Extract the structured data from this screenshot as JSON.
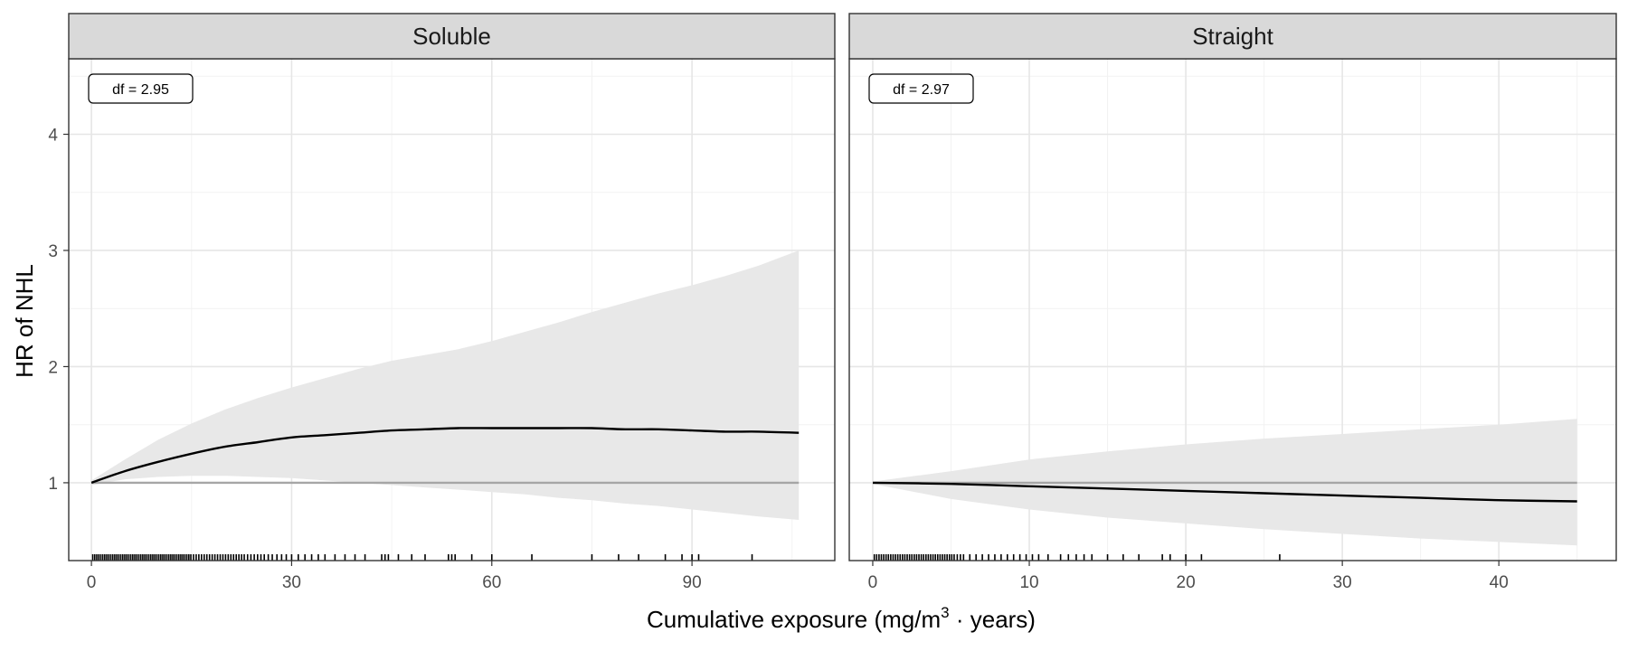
{
  "chart_data": {
    "type": "line",
    "ylabel": "HR of NHL",
    "xlabel_parts": {
      "before": "Cumulative exposure (mg/m",
      "sup": "3",
      "after": " · years)"
    },
    "ylim": [
      0.33,
      4.65
    ],
    "yticks": [
      1,
      2,
      3,
      4
    ],
    "y_minor": [
      1.5,
      2.5,
      3.5,
      4.5
    ],
    "grid": true,
    "reference_line": 1,
    "panels": [
      {
        "strip": "Soluble",
        "annotation": "df = 2.95",
        "xlim": [
          -3.4,
          111.4
        ],
        "xticks": [
          0,
          30,
          60,
          90
        ],
        "x_minor": [
          15,
          45,
          75,
          105
        ],
        "series": {
          "x": [
            0,
            5,
            10,
            15,
            20,
            25,
            30,
            35,
            40,
            45,
            50,
            55,
            60,
            65,
            70,
            75,
            80,
            85,
            90,
            95,
            100,
            106
          ],
          "fit": [
            1.0,
            1.1,
            1.18,
            1.25,
            1.31,
            1.35,
            1.39,
            1.41,
            1.43,
            1.45,
            1.46,
            1.47,
            1.47,
            1.47,
            1.47,
            1.47,
            1.46,
            1.46,
            1.45,
            1.44,
            1.44,
            1.43
          ],
          "lower": [
            0.98,
            1.03,
            1.05,
            1.06,
            1.06,
            1.05,
            1.04,
            1.02,
            1.0,
            0.98,
            0.96,
            0.94,
            0.92,
            0.9,
            0.87,
            0.85,
            0.82,
            0.8,
            0.77,
            0.74,
            0.71,
            0.68
          ],
          "upper": [
            1.02,
            1.2,
            1.37,
            1.51,
            1.63,
            1.73,
            1.82,
            1.9,
            1.98,
            2.05,
            2.1,
            2.15,
            2.22,
            2.3,
            2.38,
            2.47,
            2.55,
            2.63,
            2.7,
            2.78,
            2.87,
            3.0
          ]
        },
        "rug": [
          0.2,
          0.5,
          0.8,
          1.1,
          1.4,
          1.7,
          2.0,
          2.3,
          2.6,
          2.9,
          3.2,
          3.5,
          3.8,
          4.1,
          4.4,
          4.7,
          5.0,
          5.3,
          5.6,
          5.9,
          6.2,
          6.5,
          6.8,
          7.1,
          7.4,
          7.7,
          8.0,
          8.3,
          8.6,
          8.9,
          9.2,
          9.5,
          9.8,
          10.1,
          10.4,
          10.7,
          11.0,
          11.3,
          11.6,
          11.9,
          12.2,
          12.5,
          12.8,
          13.1,
          13.4,
          13.7,
          14.0,
          14.3,
          14.6,
          14.9,
          15.3,
          15.7,
          16.1,
          16.5,
          16.9,
          17.3,
          17.7,
          18.1,
          18.5,
          18.9,
          19.3,
          19.7,
          20.1,
          20.5,
          20.9,
          21.3,
          21.7,
          22.1,
          22.5,
          22.9,
          23.4,
          23.9,
          24.4,
          24.9,
          25.4,
          25.9,
          26.5,
          27.1,
          27.8,
          28.5,
          29.2,
          30.0,
          31.0,
          32.0,
          33.0,
          34.0,
          35.0,
          36.5,
          38.0,
          39.5,
          41.0,
          43.5,
          44.0,
          44.5,
          46.0,
          48.0,
          50.0,
          53.5,
          54.0,
          54.5,
          57.0,
          60.0,
          66.0,
          75.0,
          79.0,
          82.0,
          86.0,
          88.5,
          90.0,
          91.0,
          99.0
        ]
      },
      {
        "strip": "Straight",
        "annotation": "df = 2.97",
        "xlim": [
          -1.5,
          47.5
        ],
        "xticks": [
          0,
          10,
          20,
          30,
          40
        ],
        "x_minor": [
          5,
          15,
          25,
          35,
          45
        ],
        "series": {
          "x": [
            0,
            5,
            10,
            15,
            20,
            25,
            30,
            35,
            40,
            45
          ],
          "fit": [
            1.0,
            0.99,
            0.97,
            0.95,
            0.93,
            0.91,
            0.89,
            0.87,
            0.85,
            0.84
          ],
          "lower": [
            0.99,
            0.86,
            0.77,
            0.7,
            0.65,
            0.6,
            0.56,
            0.52,
            0.49,
            0.46
          ],
          "upper": [
            1.01,
            1.1,
            1.2,
            1.27,
            1.33,
            1.38,
            1.42,
            1.46,
            1.5,
            1.55
          ]
        },
        "rug": [
          0.1,
          0.25,
          0.4,
          0.55,
          0.7,
          0.85,
          1.0,
          1.15,
          1.3,
          1.45,
          1.6,
          1.75,
          1.9,
          2.05,
          2.2,
          2.35,
          2.5,
          2.65,
          2.8,
          2.95,
          3.1,
          3.25,
          3.4,
          3.55,
          3.7,
          3.85,
          4.0,
          4.15,
          4.3,
          4.45,
          4.6,
          4.75,
          4.9,
          5.05,
          5.2,
          5.4,
          5.6,
          5.8,
          6.2,
          6.6,
          7.0,
          7.4,
          7.8,
          8.2,
          8.6,
          9.0,
          9.4,
          9.8,
          10.2,
          10.6,
          11.2,
          12.0,
          12.5,
          13.0,
          13.5,
          14.0,
          15.0,
          16.0,
          17.0,
          18.5,
          19.0,
          20.0,
          21.0,
          26.0
        ]
      }
    ],
    "colors": {
      "fit": "#000000",
      "band": "#e8e8e8",
      "reference": "#a6a6a6",
      "strip": "#d9d9d9",
      "grid_major": "#e6e6e6",
      "grid_minor": "#f2f2f2",
      "rug": "#000000"
    }
  }
}
